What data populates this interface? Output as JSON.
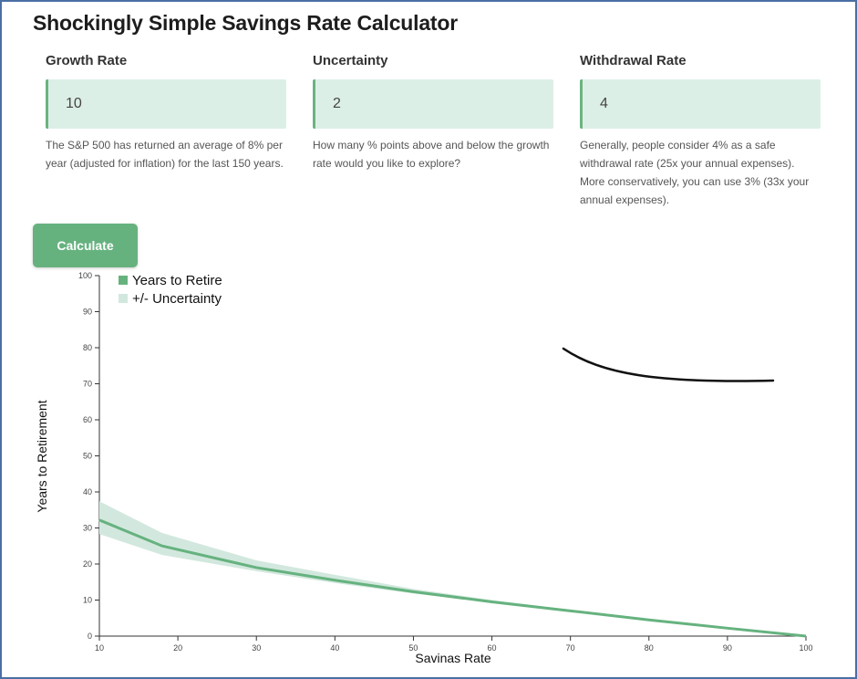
{
  "title": "Shockingly Simple Savings Rate Calculator",
  "fields": [
    {
      "label": "Growth Rate",
      "value": "10",
      "help": "The S&P 500 has returned an average of 8% per year (adjusted for inflation) for the last 150 years."
    },
    {
      "label": "Uncertainty",
      "value": "2",
      "help": "How many % points above and below the growth rate would you like to explore?"
    },
    {
      "label": "Withdrawal Rate",
      "value": "4",
      "help": "Generally, people consider 4% as a safe withdrawal rate (25x your annual expenses). More conservatively, you can use 3% (33x your annual expenses)."
    }
  ],
  "calculate_label": "Calculate",
  "colors": {
    "accent": "#66b27f",
    "band": "#d2e8de",
    "input_bg": "#dcefe6"
  },
  "chart_data": {
    "type": "line",
    "xlabel": "Savinas Rate",
    "ylabel": "Years to Retirement",
    "xlim": [
      10,
      100
    ],
    "ylim": [
      0,
      100
    ],
    "xticks": [
      10,
      20,
      30,
      40,
      50,
      60,
      70,
      80,
      90,
      100
    ],
    "yticks": [
      0,
      10,
      20,
      30,
      40,
      50,
      60,
      70,
      80,
      90,
      100
    ],
    "legend": [
      "Years to Retire",
      "+/- Uncertainty"
    ],
    "legend_position": "top-left",
    "x": [
      10,
      18,
      30,
      40,
      50,
      60,
      70,
      80,
      90,
      100
    ],
    "series": [
      {
        "name": "Years to Retire",
        "values": [
          32.2,
          25,
          19,
          15.5,
          12.3,
          9.5,
          7,
          4.5,
          2.2,
          0
        ]
      },
      {
        "name": "+/- Uncertainty",
        "low": [
          28.3,
          22.5,
          18,
          14.7,
          11.8,
          9.3,
          7,
          4.5,
          2.2,
          0
        ],
        "high": [
          37.4,
          28.6,
          21,
          17,
          13.1,
          10,
          7.3,
          4.6,
          2.3,
          0
        ]
      }
    ]
  }
}
